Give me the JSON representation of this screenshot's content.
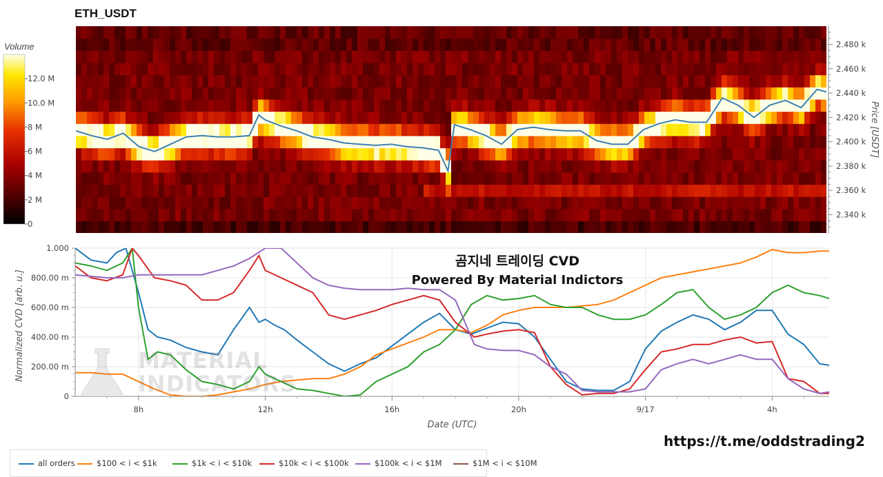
{
  "title": "ETH_USDT",
  "overlay": {
    "title": "곰지네 트레이딩 CVD",
    "subtitle": "Powered By Material Indictors"
  },
  "link": "https://t.me/oddstrading2",
  "watermark": {
    "line1": "MATERIAL",
    "line2": "INDICATORS",
    "icon": "flask-icon"
  },
  "colorbar": {
    "label": "Volume",
    "ticks": [
      "0",
      "2 M",
      "4 M",
      "6 M",
      "8 M",
      "10.0 M",
      "12.0 M"
    ],
    "tick_values": [
      0,
      2,
      4,
      6,
      8,
      10,
      12
    ],
    "max": 14
  },
  "chart_data": [
    {
      "type": "heatmap",
      "title": "ETH_USDT",
      "ylabel": "Price [USDT]",
      "ylim": [
        2325,
        2495
      ],
      "ytick_labels": [
        "2.340 k",
        "2.360 k",
        "2.380 k",
        "2.400 k",
        "2.420 k",
        "2.440 k",
        "2.460 k",
        "2.480 k"
      ],
      "ytick_values": [
        2340,
        2360,
        2380,
        2400,
        2420,
        2440,
        2460,
        2480
      ],
      "x_hours": [
        6,
        29.8
      ],
      "price_line_color": "#3d7fb0",
      "price_line": {
        "x": [
          6.0,
          6.5,
          7.0,
          7.5,
          8.0,
          8.5,
          9.0,
          9.5,
          10.0,
          10.5,
          11.0,
          11.5,
          11.8,
          12.0,
          12.5,
          13.0,
          13.5,
          14.0,
          14.5,
          15.0,
          15.5,
          16.0,
          16.5,
          17.0,
          17.5,
          17.8,
          18.0,
          18.5,
          19.0,
          19.5,
          20.0,
          20.5,
          21.0,
          21.5,
          22.0,
          22.5,
          23.0,
          23.5,
          24.0,
          24.5,
          25.0,
          25.5,
          26.0,
          26.5,
          27.0,
          27.5,
          28.0,
          28.5,
          29.0,
          29.5,
          29.8
        ],
        "y": [
          2409,
          2405,
          2402,
          2407,
          2396,
          2392,
          2398,
          2404,
          2405,
          2404,
          2404,
          2405,
          2422,
          2418,
          2413,
          2409,
          2404,
          2402,
          2399,
          2398,
          2397,
          2398,
          2396,
          2395,
          2393,
          2376,
          2414,
          2410,
          2405,
          2398,
          2410,
          2412,
          2410,
          2409,
          2409,
          2401,
          2398,
          2398,
          2410,
          2415,
          2418,
          2416,
          2416,
          2436,
          2430,
          2420,
          2430,
          2434,
          2428,
          2443,
          2441
        ]
      }
    },
    {
      "type": "line",
      "xlabel": "Date (UTC)",
      "ylabel": "Normalized CVD [arb. u.]",
      "ylim": [
        0,
        1
      ],
      "xlim": [
        6,
        29.8
      ],
      "xtick_labels": [
        "8h",
        "12h",
        "16h",
        "20h",
        "9/17",
        "4h"
      ],
      "xtick_values": [
        8,
        12,
        16,
        20,
        24,
        28
      ],
      "ytick_labels": [
        "0",
        "200.00 m",
        "400.00 m",
        "600.00 m",
        "800.00 m",
        "1.000"
      ],
      "ytick_values": [
        0,
        0.2,
        0.4,
        0.6,
        0.8,
        1.0
      ],
      "series": [
        {
          "name": "all orders",
          "color": "#1f77b4",
          "x": [
            6.0,
            6.5,
            7.0,
            7.3,
            7.6,
            8.0,
            8.3,
            8.6,
            9.0,
            9.5,
            10.0,
            10.5,
            11.0,
            11.5,
            11.8,
            12.0,
            12.3,
            12.6,
            13.0,
            13.5,
            14.0,
            14.5,
            15.0,
            15.5,
            16.0,
            16.5,
            17.0,
            17.5,
            18.0,
            18.5,
            19.0,
            19.5,
            20.0,
            20.5,
            21.0,
            21.5,
            22.0,
            22.5,
            23.0,
            23.5,
            24.0,
            24.5,
            25.0,
            25.5,
            26.0,
            26.5,
            27.0,
            27.5,
            28.0,
            28.5,
            29.0,
            29.5,
            29.8
          ],
          "y": [
            1.0,
            0.92,
            0.9,
            0.97,
            1.0,
            0.7,
            0.45,
            0.4,
            0.38,
            0.33,
            0.3,
            0.28,
            0.45,
            0.6,
            0.5,
            0.52,
            0.48,
            0.45,
            0.38,
            0.3,
            0.22,
            0.17,
            0.22,
            0.26,
            0.34,
            0.42,
            0.5,
            0.56,
            0.45,
            0.42,
            0.46,
            0.5,
            0.49,
            0.4,
            0.25,
            0.1,
            0.05,
            0.04,
            0.04,
            0.1,
            0.32,
            0.44,
            0.5,
            0.55,
            0.52,
            0.45,
            0.5,
            0.58,
            0.58,
            0.42,
            0.35,
            0.22,
            0.21
          ]
        },
        {
          "name": "$100 < i < $1k",
          "color": "#ff7f0e",
          "x": [
            6.0,
            6.5,
            7.0,
            7.5,
            8.0,
            8.5,
            9.0,
            9.5,
            10.0,
            10.5,
            11.0,
            11.5,
            12.0,
            12.5,
            13.0,
            13.5,
            14.0,
            14.5,
            15.0,
            15.5,
            16.0,
            16.5,
            17.0,
            17.5,
            18.0,
            18.5,
            19.0,
            19.5,
            20.0,
            20.5,
            21.0,
            21.5,
            22.0,
            22.5,
            23.0,
            23.5,
            24.0,
            24.5,
            25.0,
            25.5,
            26.0,
            26.5,
            27.0,
            27.5,
            28.0,
            28.5,
            29.0,
            29.5,
            29.8
          ],
          "y": [
            0.16,
            0.16,
            0.15,
            0.15,
            0.1,
            0.05,
            0.01,
            0.0,
            0.0,
            0.01,
            0.03,
            0.05,
            0.08,
            0.1,
            0.11,
            0.12,
            0.12,
            0.15,
            0.2,
            0.28,
            0.32,
            0.36,
            0.4,
            0.45,
            0.45,
            0.43,
            0.48,
            0.55,
            0.58,
            0.6,
            0.6,
            0.6,
            0.61,
            0.62,
            0.65,
            0.7,
            0.75,
            0.8,
            0.82,
            0.84,
            0.86,
            0.88,
            0.9,
            0.94,
            0.99,
            0.97,
            0.97,
            0.98,
            0.98
          ]
        },
        {
          "name": "$1k < i < $10k",
          "color": "#2ca02c",
          "x": [
            6.0,
            6.5,
            7.0,
            7.5,
            7.8,
            8.0,
            8.3,
            8.6,
            9.0,
            9.5,
            10.0,
            10.5,
            11.0,
            11.5,
            11.8,
            12.0,
            12.5,
            13.0,
            13.5,
            14.0,
            14.5,
            15.0,
            15.5,
            16.0,
            16.5,
            17.0,
            17.5,
            18.0,
            18.5,
            19.0,
            19.5,
            20.0,
            20.5,
            21.0,
            21.5,
            22.0,
            22.5,
            23.0,
            23.5,
            24.0,
            24.5,
            25.0,
            25.5,
            26.0,
            26.5,
            27.0,
            27.5,
            28.0,
            28.5,
            29.0,
            29.5,
            29.8
          ],
          "y": [
            0.9,
            0.88,
            0.85,
            0.9,
            1.0,
            0.6,
            0.25,
            0.3,
            0.28,
            0.18,
            0.1,
            0.08,
            0.05,
            0.1,
            0.2,
            0.15,
            0.1,
            0.05,
            0.04,
            0.02,
            0.0,
            0.01,
            0.1,
            0.15,
            0.2,
            0.3,
            0.35,
            0.45,
            0.62,
            0.68,
            0.65,
            0.66,
            0.68,
            0.62,
            0.6,
            0.6,
            0.55,
            0.52,
            0.52,
            0.55,
            0.62,
            0.7,
            0.72,
            0.6,
            0.52,
            0.55,
            0.6,
            0.7,
            0.75,
            0.7,
            0.68,
            0.66
          ]
        },
        {
          "name": "$10k < i < $100k",
          "color": "#d62728",
          "x": [
            6.0,
            6.5,
            7.0,
            7.5,
            7.8,
            8.0,
            8.5,
            9.0,
            9.5,
            10.0,
            10.5,
            11.0,
            11.5,
            11.8,
            12.0,
            12.5,
            13.0,
            13.5,
            14.0,
            14.5,
            15.0,
            15.5,
            16.0,
            16.5,
            17.0,
            17.5,
            18.0,
            18.3,
            18.6,
            19.0,
            19.5,
            20.0,
            20.5,
            21.0,
            21.5,
            22.0,
            22.5,
            23.0,
            23.5,
            24.0,
            24.5,
            25.0,
            25.5,
            26.0,
            26.5,
            27.0,
            27.5,
            28.0,
            28.5,
            29.0,
            29.5,
            29.8
          ],
          "y": [
            0.88,
            0.8,
            0.78,
            0.82,
            1.0,
            0.95,
            0.8,
            0.78,
            0.75,
            0.65,
            0.65,
            0.7,
            0.85,
            0.95,
            0.85,
            0.8,
            0.75,
            0.7,
            0.55,
            0.52,
            0.55,
            0.58,
            0.62,
            0.65,
            0.68,
            0.65,
            0.5,
            0.45,
            0.4,
            0.42,
            0.44,
            0.45,
            0.43,
            0.2,
            0.08,
            0.01,
            0.02,
            0.02,
            0.05,
            0.18,
            0.3,
            0.32,
            0.35,
            0.35,
            0.38,
            0.4,
            0.36,
            0.37,
            0.12,
            0.1,
            0.02,
            0.02
          ]
        },
        {
          "name": "$100k < i < $1M",
          "color": "#9467bd",
          "x": [
            6.0,
            6.5,
            7.0,
            7.5,
            8.0,
            8.5,
            9.0,
            9.5,
            10.0,
            10.5,
            11.0,
            11.5,
            12.0,
            12.5,
            13.0,
            13.5,
            14.0,
            14.5,
            15.0,
            15.5,
            16.0,
            16.5,
            17.0,
            17.5,
            18.0,
            18.3,
            18.6,
            19.0,
            19.5,
            20.0,
            20.5,
            21.0,
            21.5,
            22.0,
            22.5,
            23.0,
            23.5,
            24.0,
            24.5,
            25.0,
            25.5,
            26.0,
            26.5,
            27.0,
            27.5,
            28.0,
            28.5,
            29.0,
            29.5,
            29.8
          ],
          "y": [
            0.82,
            0.81,
            0.8,
            0.8,
            0.82,
            0.82,
            0.82,
            0.82,
            0.82,
            0.85,
            0.88,
            0.93,
            1.0,
            1.0,
            0.9,
            0.8,
            0.75,
            0.73,
            0.72,
            0.72,
            0.72,
            0.73,
            0.72,
            0.72,
            0.65,
            0.5,
            0.35,
            0.32,
            0.31,
            0.31,
            0.28,
            0.2,
            0.15,
            0.04,
            0.03,
            0.03,
            0.03,
            0.05,
            0.18,
            0.22,
            0.25,
            0.22,
            0.25,
            0.28,
            0.25,
            0.25,
            0.12,
            0.05,
            0.02,
            0.03
          ]
        },
        {
          "name": "$1M < i < $10M",
          "color": "#8c564b",
          "x": [],
          "y": []
        }
      ]
    }
  ]
}
